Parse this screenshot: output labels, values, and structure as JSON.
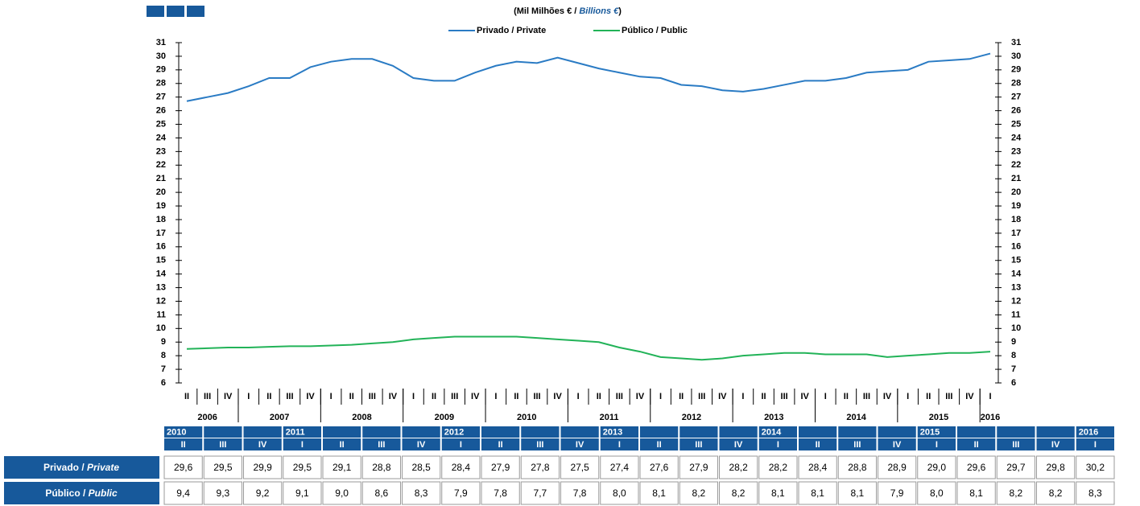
{
  "chart_data": {
    "type": "line",
    "title_parts": [
      "(Mil Milhões € / ",
      "Billions €",
      ")"
    ],
    "categories": [
      "II",
      "III",
      "IV",
      "I",
      "II",
      "III",
      "IV",
      "I",
      "II",
      "III",
      "IV",
      "I",
      "II",
      "III",
      "IV",
      "I",
      "II",
      "III",
      "IV",
      "I",
      "II",
      "III",
      "IV",
      "I",
      "II",
      "III",
      "IV",
      "I",
      "II",
      "III",
      "IV",
      "I",
      "II",
      "III",
      "IV",
      "I",
      "II",
      "III",
      "IV",
      "I"
    ],
    "years": [
      "2006",
      "2007",
      "2008",
      "2009",
      "2010",
      "2011",
      "2012",
      "2013",
      "2014",
      "2015",
      "2016"
    ],
    "series": [
      {
        "name": "Privado / Private",
        "color": "#2a7bc4",
        "values": [
          26.7,
          27.0,
          27.3,
          27.8,
          28.4,
          28.4,
          29.2,
          29.6,
          29.8,
          29.8,
          29.3,
          28.4,
          28.2,
          28.2,
          28.8,
          29.3,
          29.6,
          29.5,
          29.9,
          29.5,
          29.1,
          28.8,
          28.5,
          28.4,
          27.9,
          27.8,
          27.5,
          27.4,
          27.6,
          27.9,
          28.2,
          28.2,
          28.4,
          28.8,
          28.9,
          29.0,
          29.6,
          29.7,
          29.8,
          30.2
        ]
      },
      {
        "name": "Público / Public",
        "color": "#22b358",
        "values": [
          8.5,
          8.55,
          8.6,
          8.6,
          8.65,
          8.7,
          8.7,
          8.75,
          8.8,
          8.9,
          9.0,
          9.2,
          9.3,
          9.4,
          9.4,
          9.4,
          9.4,
          9.3,
          9.2,
          9.1,
          9.0,
          8.6,
          8.3,
          7.9,
          7.8,
          7.7,
          7.8,
          8.0,
          8.1,
          8.2,
          8.2,
          8.1,
          8.1,
          8.1,
          7.9,
          8.0,
          8.1,
          8.2,
          8.2,
          8.3
        ]
      }
    ],
    "ylim": [
      6,
      31
    ],
    "yticks": [
      6,
      7,
      8,
      9,
      10,
      11,
      12,
      13,
      14,
      15,
      16,
      17,
      18,
      19,
      20,
      21,
      22,
      23,
      24,
      25,
      26,
      27,
      28,
      29,
      30,
      31
    ]
  },
  "table": {
    "columns": [
      {
        "year": "2010",
        "quarter": "II"
      },
      {
        "year": null,
        "quarter": "III"
      },
      {
        "year": null,
        "quarter": "IV"
      },
      {
        "year": "2011",
        "quarter": "I"
      },
      {
        "year": null,
        "quarter": "II"
      },
      {
        "year": null,
        "quarter": "III"
      },
      {
        "year": null,
        "quarter": "IV"
      },
      {
        "year": "2012",
        "quarter": "I"
      },
      {
        "year": null,
        "quarter": "II"
      },
      {
        "year": null,
        "quarter": "III"
      },
      {
        "year": null,
        "quarter": "IV"
      },
      {
        "year": "2013",
        "quarter": "I"
      },
      {
        "year": null,
        "quarter": "II"
      },
      {
        "year": null,
        "quarter": "III"
      },
      {
        "year": null,
        "quarter": "IV"
      },
      {
        "year": "2014",
        "quarter": "I"
      },
      {
        "year": null,
        "quarter": "II"
      },
      {
        "year": null,
        "quarter": "III"
      },
      {
        "year": null,
        "quarter": "IV"
      },
      {
        "year": "2015",
        "quarter": "I"
      },
      {
        "year": null,
        "quarter": "II"
      },
      {
        "year": null,
        "quarter": "III"
      },
      {
        "year": null,
        "quarter": "IV"
      },
      {
        "year": "2016",
        "quarter": "I"
      }
    ],
    "rows": [
      {
        "label": "Privado / ",
        "label_en": "Private",
        "values": [
          "29,6",
          "29,5",
          "29,9",
          "29,5",
          "29,1",
          "28,8",
          "28,5",
          "28,4",
          "27,9",
          "27,8",
          "27,5",
          "27,4",
          "27,6",
          "27,9",
          "28,2",
          "28,2",
          "28,4",
          "28,8",
          "28,9",
          "29,0",
          "29,6",
          "29,7",
          "29,8",
          "30,2"
        ]
      },
      {
        "label": "Público / ",
        "label_en": "Public",
        "values": [
          "9,4",
          "9,3",
          "9,2",
          "9,1",
          "9,0",
          "8,6",
          "8,3",
          "7,9",
          "7,8",
          "7,7",
          "7,8",
          "8,0",
          "8,1",
          "8,2",
          "8,2",
          "8,1",
          "8,1",
          "8,1",
          "7,9",
          "8,0",
          "8,1",
          "8,2",
          "8,2",
          "8,3"
        ]
      }
    ]
  }
}
